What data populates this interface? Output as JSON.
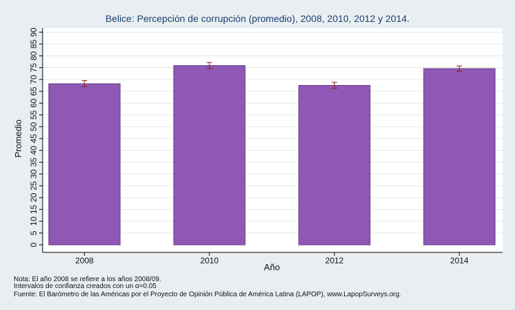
{
  "chart_data": {
    "type": "bar",
    "title": "Belice: Percepción de corrupción (promedio), 2008, 2010, 2012 y 2014.",
    "xlabel": "Año",
    "ylabel": "Promedio",
    "categories": [
      "2008",
      "2010",
      "2012",
      "2014"
    ],
    "values": [
      68.2,
      75.9,
      67.5,
      74.6
    ],
    "ci_low": [
      67.0,
      74.6,
      66.2,
      73.5
    ],
    "ci_high": [
      69.5,
      77.2,
      68.8,
      75.7
    ],
    "ylim": [
      0,
      90
    ],
    "yticks": [
      0,
      5,
      10,
      15,
      20,
      25,
      30,
      35,
      40,
      45,
      50,
      55,
      60,
      65,
      70,
      75,
      80,
      85,
      90
    ],
    "grid": true,
    "colors": {
      "bar_fill": "#8e58b4",
      "bar_stroke": "#6a3d8a",
      "error_bar": "#8a1a1a",
      "plot_background": "#ffffff",
      "grid": "#e6e6e6",
      "title": "#1c3f6e"
    }
  },
  "notes": [
    "Nota: El año 2008 se refiere a los años 2008/09.",
    "Intervalos de confianza creados con un α=0.05",
    "Fuente: El Barómetro de las Américas por el Proyecto de Opinión Pública de América Latina (LAPOP), www.LapopSurveys.org."
  ]
}
